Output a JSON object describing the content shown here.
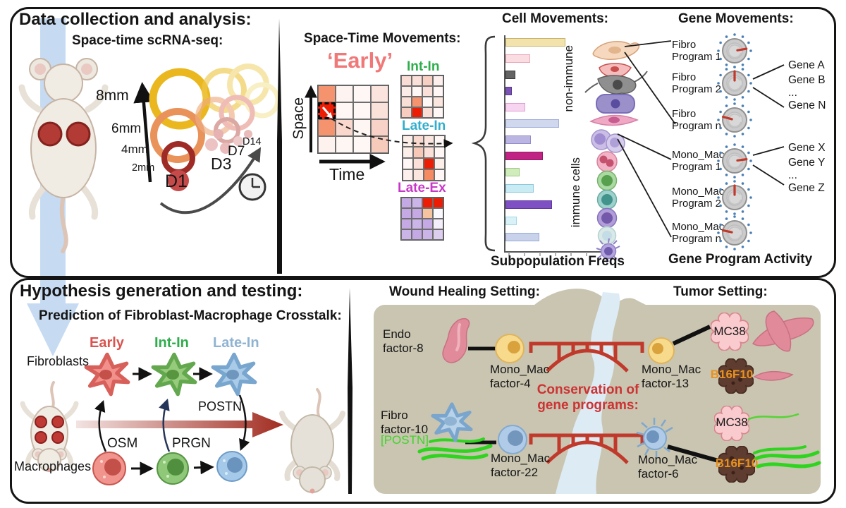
{
  "top": {
    "title": "Data collection and analysis:",
    "scrna_title": "Space-time scRNA-seq:",
    "sizes": [
      "8mm",
      "6mm",
      "4mm",
      "2mm"
    ],
    "days": [
      "D1",
      "D3",
      "D7",
      "D14"
    ],
    "stm": {
      "title": "Space-Time Movements:",
      "early": "‘Early’",
      "y_axis": "Space",
      "x_axis": "Time",
      "int_in": "Int-In",
      "late_in": "Late-In",
      "late_ex": "Late-Ex"
    },
    "cells": {
      "title": "Cell Movements:",
      "non_immune": "non-immune",
      "immune": "immune cells",
      "xlabel": "Subpopulation Freqs"
    },
    "genes": {
      "title": "Gene Movements:",
      "footer": "Gene Program Activity",
      "programs": [
        {
          "label": "Fibro Program 1",
          "angle": 10
        },
        {
          "label": "Fibro Program 2",
          "angle": 90
        },
        {
          "label": "Fibro Program n",
          "angle": 165
        },
        {
          "label": "Mono_Mac Program 1",
          "angle": 8
        },
        {
          "label": "Mono_Mac Program 2",
          "angle": 90
        },
        {
          "label": "Mono_Mac Program n",
          "angle": 168
        }
      ],
      "fibro_genes": [
        "Gene A",
        "Gene B",
        "...",
        "Gene N"
      ],
      "mono_genes": [
        "Gene X",
        "Gene Y",
        "...",
        "Gene Z"
      ]
    }
  },
  "bottom": {
    "title": "Hypothesis generation and testing:",
    "subtitle": "Prediction of Fibroblast-Macrophage Crosstalk:",
    "fibroblasts": "Fibroblasts",
    "macrophages": "Macrophages",
    "stages": {
      "early": "Early",
      "int_in": "Int-In",
      "late_in": "Late-In"
    },
    "factors": {
      "osm": "OSM",
      "prgn": "PRGN",
      "postn": "POSTN"
    },
    "wound": {
      "title": "Wound Healing Setting:",
      "endo": "Endo factor-8",
      "mm4": "Mono_Mac factor-4",
      "fibro10": "Fibro factor-10",
      "postn_tag": "[POSTN]",
      "mm22": "Mono_Mac factor-22"
    },
    "conservation": "Conservation of gene programs:",
    "tumor": {
      "title": "Tumor Setting:",
      "mm13": "Mono_Mac factor-13",
      "mm6": "Mono_Mac factor-6",
      "mc38_a": "MC38",
      "b16_a": "B16F10",
      "mc38_b": "MC38",
      "b16_b": "B16F10"
    }
  },
  "accent_colors": {
    "early_top": "#F07878",
    "int_in": "#2EAD4B",
    "late_in_top": "#31AECC",
    "late_ex": "#C838C8",
    "early_bottom": "#D9534F",
    "late_in_bottom": "#8FB4D2",
    "conservation_red": "#CC3333",
    "postn_green": "#3FD42A",
    "b16f10_orange": "#E8921E"
  },
  "chart_data": {
    "type": "heatmap+bar",
    "heatmaps": {
      "early": [
        [
          "#F5936F",
          "#FDF3F0",
          "#FEF7F5",
          "#FAE4DD"
        ],
        [
          "#ED1C05",
          "#FEF7F5",
          "#FEF7F5",
          "#FAE2DB"
        ],
        [
          "#F5936F",
          "#F9D7CD",
          "#FEF6F3",
          "#F8D2C6"
        ],
        [
          "#FDF2EE",
          "#FEF6F3",
          "#FEF7F5",
          "#F7CBBC"
        ]
      ],
      "early_highlight_cell": [
        1,
        0
      ],
      "int_in": [
        [
          "#F9DDD4",
          "#FAE0D8",
          "#F8D0C3",
          "#FDF0EC"
        ],
        [
          "#FCECE7",
          "#FEF7F5",
          "#FAE0D8",
          "#FEF7F5"
        ],
        [
          "#FADFD7",
          "#F5936F",
          "#FEF7F5",
          "#FBE6DF"
        ],
        [
          "#F8CDBF",
          "#ED1C05",
          "#F9DCD3",
          "#FEF7F5"
        ]
      ],
      "late_in": [
        [
          "#FCEFEA",
          "#F9D8CE",
          "#FBE6DF",
          "#FEF7F5"
        ],
        [
          "#FCEFEA",
          "#F7C8B7",
          "#FAE0D8",
          "#FEF7F5"
        ],
        [
          "#FEF7F5",
          "#FAE0D8",
          "#ED1C05",
          "#FCEFEA"
        ],
        [
          "#FDF0EC",
          "#FBE6DF",
          "#F58A60",
          "#FEF7F5"
        ]
      ],
      "late_ex": [
        [
          "#C4A9E5",
          "#CBB5E8",
          "#ED1C05",
          "#ED1C05"
        ],
        [
          "#C4A9E5",
          "#C4A9E5",
          "#F5C3A0",
          "#FAF7FD"
        ],
        [
          "#C4A9E5",
          "#CBB5E8",
          "#C4A9E5",
          "#F3EEFA"
        ],
        [
          "#CBB5E8",
          "#C4A9E5",
          "#CBB5E8",
          "#DDCEF0"
        ]
      ]
    },
    "bars": {
      "title": "Subpopulation Freqs",
      "note": "relative subpopulation frequency, length in px",
      "items": [
        {
          "len": 85,
          "color": "#F2E2AC",
          "border": "#C9B36A"
        },
        {
          "len": 35,
          "color": "#FADCE3",
          "border": "#EBA8B8"
        },
        {
          "len": 14,
          "color": "#636363",
          "border": "#3A3A3A"
        },
        {
          "len": 9,
          "color": "#7A52B5",
          "border": "#5A3A90"
        },
        {
          "len": 28,
          "color": "#F7D4EF",
          "border": "#DE9ED2"
        },
        {
          "len": 76,
          "color": "#D0D8EE",
          "border": "#A2ACDC"
        },
        {
          "len": 36,
          "color": "#BBB5E2",
          "border": "#938BCC"
        },
        {
          "len": 53,
          "color": "#C02383",
          "border": "#951A66"
        },
        {
          "len": 20,
          "color": "#D0ECBC",
          "border": "#9CCB80"
        },
        {
          "len": 40,
          "color": "#C8EBF4",
          "border": "#8FC9DC"
        },
        {
          "len": 66,
          "color": "#7E50C3",
          "border": "#5E38A0"
        },
        {
          "len": 16,
          "color": "#D8F2F8",
          "border": "#A5D8E6"
        },
        {
          "len": 48,
          "color": "#C8D2EA",
          "border": "#9AAAD6"
        }
      ]
    }
  }
}
